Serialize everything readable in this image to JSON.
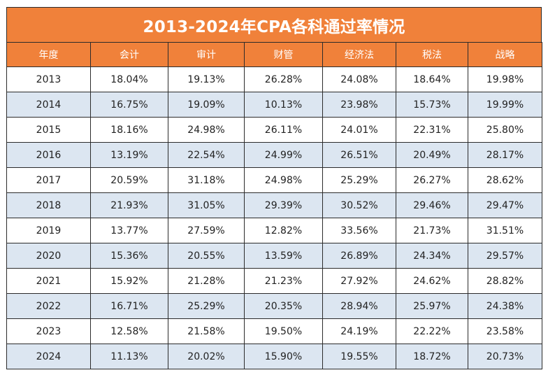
{
  "title": "2013-2024年CPA各科通过率情况",
  "columns": [
    "年度",
    "会计",
    "审计",
    "财管",
    "经济法",
    "税法",
    "战略"
  ],
  "rows": [
    [
      "2013",
      "18.04%",
      "19.13%",
      "26.28%",
      "24.08%",
      "18.64%",
      "19.98%"
    ],
    [
      "2014",
      "16.75%",
      "19.09%",
      "10.13%",
      "23.98%",
      "15.73%",
      "19.99%"
    ],
    [
      "2015",
      "18.16%",
      "24.98%",
      "26.11%",
      "24.01%",
      "22.31%",
      "25.80%"
    ],
    [
      "2016",
      "13.19%",
      "22.54%",
      "24.99%",
      "26.51%",
      "20.49%",
      "28.17%"
    ],
    [
      "2017",
      "20.59%",
      "31.18%",
      "24.98%",
      "25.29%",
      "26.27%",
      "28.62%"
    ],
    [
      "2018",
      "21.93%",
      "31.05%",
      "29.39%",
      "30.52%",
      "29.46%",
      "29.47%"
    ],
    [
      "2019",
      "13.77%",
      "27.59%",
      "12.82%",
      "33.56%",
      "21.73%",
      "31.51%"
    ],
    [
      "2020",
      "15.36%",
      "20.55%",
      "13.59%",
      "26.89%",
      "24.34%",
      "29.57%"
    ],
    [
      "2021",
      "15.92%",
      "21.28%",
      "21.23%",
      "27.92%",
      "24.62%",
      "28.82%"
    ],
    [
      "2022",
      "16.71%",
      "25.29%",
      "20.35%",
      "28.94%",
      "25.97%",
      "24.38%"
    ],
    [
      "2023",
      "12.58%",
      "21.58%",
      "19.50%",
      "24.19%",
      "22.22%",
      "23.58%"
    ],
    [
      "2024",
      "11.13%",
      "20.02%",
      "15.90%",
      "19.55%",
      "18.72%",
      "20.73%"
    ]
  ],
  "colors": {
    "header_orange": "#f0813a",
    "band_blue": "#dce6f1",
    "white": "#ffffff"
  }
}
